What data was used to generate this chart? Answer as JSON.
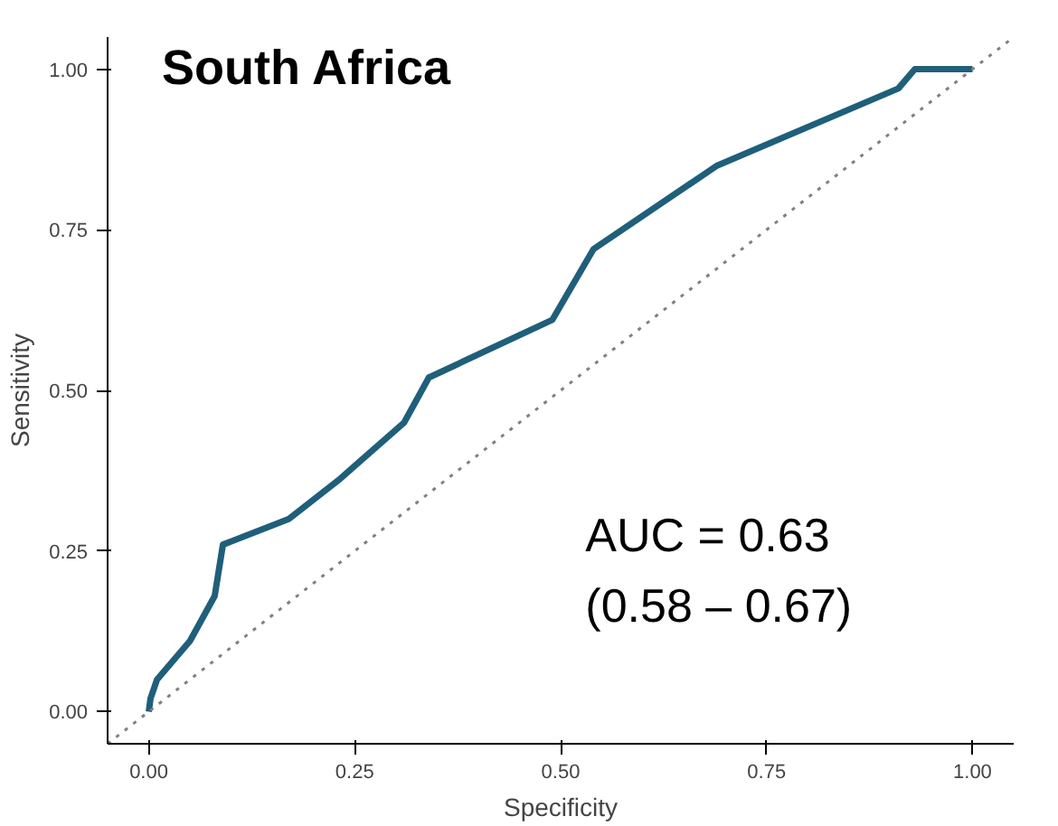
{
  "chart_data": {
    "type": "line",
    "title": "South Africa",
    "xlabel": "Specificity",
    "ylabel": "Sensitivity",
    "xlim": [
      -0.05,
      1.05
    ],
    "ylim": [
      -0.05,
      1.05
    ],
    "xticks": [
      {
        "value": 0,
        "label": "0.00"
      },
      {
        "value": 0.25,
        "label": "0.25"
      },
      {
        "value": 0.5,
        "label": "0.50"
      },
      {
        "value": 0.75,
        "label": "0.75"
      },
      {
        "value": 1,
        "label": "1.00"
      }
    ],
    "yticks": [
      {
        "value": 0,
        "label": "0.00"
      },
      {
        "value": 0.25,
        "label": "0.25"
      },
      {
        "value": 0.5,
        "label": "0.50"
      },
      {
        "value": 0.75,
        "label": "0.75"
      },
      {
        "value": 1,
        "label": "1.00"
      }
    ],
    "series": [
      {
        "color": "#1f5f7a",
        "line_style": "solid",
        "x": [
          0,
          0.002,
          0.01,
          0.05,
          0.08,
          0.09,
          0.17,
          0.23,
          0.31,
          0.34,
          0.49,
          0.54,
          0.69,
          0.91,
          0.93,
          1.0
        ],
        "values": [
          0,
          0.02,
          0.05,
          0.11,
          0.18,
          0.26,
          0.3,
          0.36,
          0.45,
          0.52,
          0.61,
          0.72,
          0.85,
          0.97,
          1.0,
          1.0
        ]
      },
      {
        "color": "#808080",
        "line_style": "dotted",
        "x": [
          -0.05,
          1.05
        ],
        "values": [
          -0.05,
          1.05
        ]
      }
    ],
    "annotations": [
      "AUC = 0.63\n(0.58 – 0.67)"
    ]
  }
}
